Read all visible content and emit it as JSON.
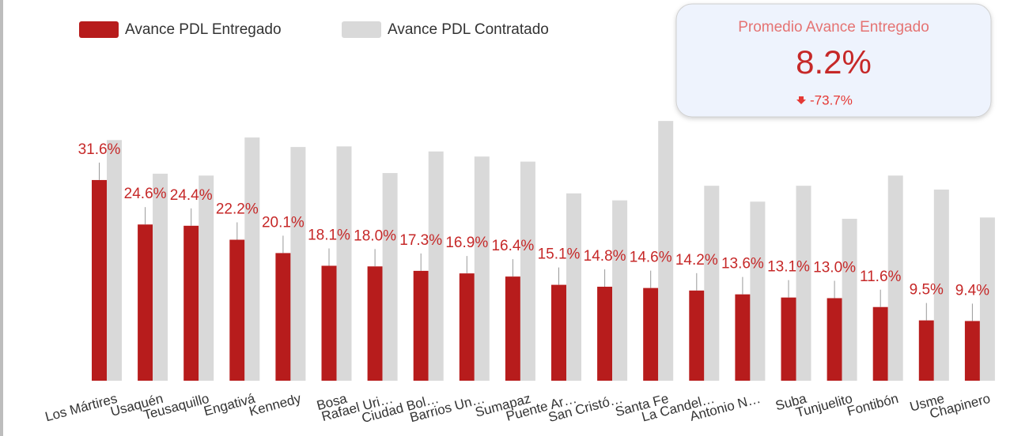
{
  "chart_data": {
    "type": "bar",
    "categories": [
      "Los Mártires",
      "Usaquén",
      "Teusaquillo",
      "Engativá",
      "Kennedy",
      "Bosa",
      "Rafael Uri…",
      "Ciudad Bol…",
      "Barrios Un…",
      "Sumapaz",
      "Puente Ar…",
      "San Cristó…",
      "Santa Fe",
      "La Candel…",
      "Antonio N…",
      "Suba",
      "Tunjuelito",
      "Fontibón",
      "Usme",
      "Chapinero"
    ],
    "series": [
      {
        "name": "Avance PDL Entregado",
        "color": "#b71c1c",
        "values": [
          31.6,
          24.6,
          24.4,
          22.2,
          20.1,
          18.1,
          18.0,
          17.3,
          16.9,
          16.4,
          15.1,
          14.8,
          14.6,
          14.2,
          13.6,
          13.1,
          13.0,
          11.6,
          9.5,
          9.4
        ],
        "value_labels": [
          "31.6%",
          "24.6%",
          "24.4%",
          "22.2%",
          "20.1%",
          "18.1%",
          "18.0%",
          "17.3%",
          "16.9%",
          "16.4%",
          "15.1%",
          "14.8%",
          "14.6%",
          "14.2%",
          "13.6%",
          "13.1%",
          "13.0%",
          "11.6%",
          "9.5%",
          "9.4%"
        ]
      },
      {
        "name": "Avance PDL Contratado",
        "color": "#d9d9d9",
        "values": [
          37.9,
          32.6,
          32.3,
          38.3,
          36.8,
          36.9,
          32.7,
          36.1,
          35.3,
          34.5,
          29.5,
          28.4,
          40.9,
          30.7,
          28.2,
          30.7,
          25.5,
          32.3,
          30.1,
          25.7
        ]
      }
    ]
  },
  "scorecard": {
    "title": "Promedio Avance Entregado",
    "value": "8.2%",
    "delta": "-73.7%"
  }
}
